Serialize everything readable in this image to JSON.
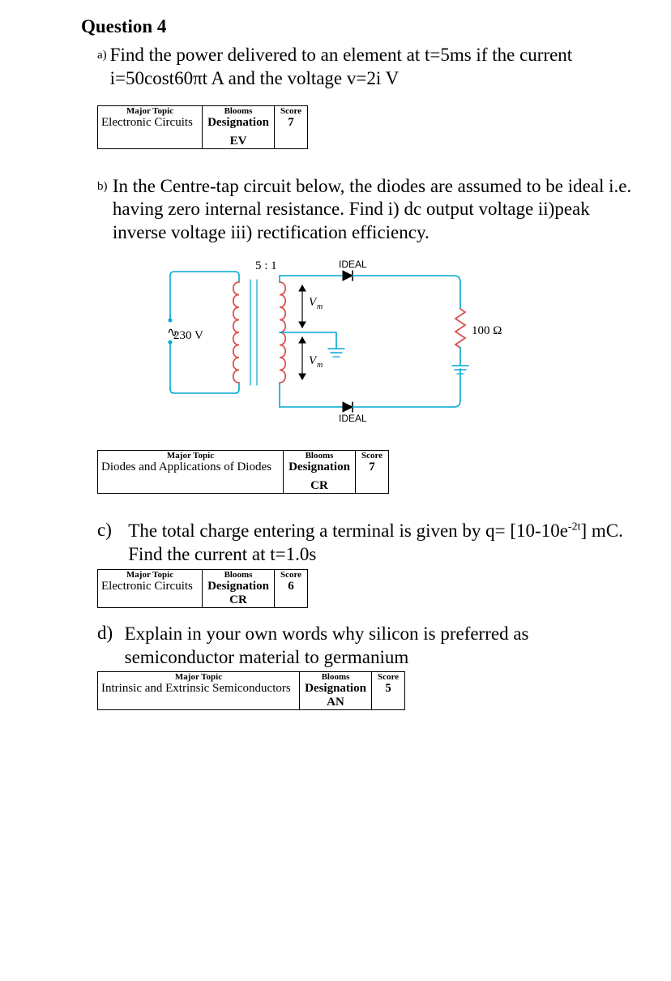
{
  "question_title": "Question 4",
  "part_a": {
    "label": "a)",
    "text": "Find the power delivered to an element at t=5ms if the current i=50cost60πt A and the voltage v=2i V"
  },
  "rubric_a": {
    "h1": "Major Topic",
    "h2": "Blooms",
    "h3": "Score",
    "topic": "Electronic Circuits",
    "desig_label": "Designation",
    "desig_value": "EV",
    "score": "7"
  },
  "part_b": {
    "label": "b)",
    "text": "In the Centre-tap circuit below, the diodes are assumed to be ideal i.e. having zero internal resistance. Find i) dc output voltage ii)peak inverse voltage iii) rectification efficiency."
  },
  "circuit": {
    "ratio": "5 : 1",
    "ideal_top": "IDEAL",
    "ideal_bot": "IDEAL",
    "vin": "230 V",
    "vm1": "V",
    "vm1_sub": "m",
    "vm2": "V",
    "vm2_sub": "m",
    "rload": "100 Ω",
    "wire_color": "#00a9d4",
    "coil_color": "#d9534f",
    "res_color": "#d9534f",
    "text_color": "#000000",
    "ideal_font": 12,
    "label_font": 15
  },
  "rubric_b": {
    "h1": "Major Topic",
    "h2": "Blooms",
    "h3": "Score",
    "topic": "Diodes and Applications of Diodes",
    "desig_label": "Designation",
    "desig_value": "CR",
    "score": "7"
  },
  "part_c": {
    "label": "c)",
    "text1": "The total charge entering a terminal is given by q= [10-10e",
    "sup": "-2t",
    "text2": "]  mC.  Find the current at t=1.0s"
  },
  "rubric_c": {
    "h1": "Major Topic",
    "h2": "Blooms",
    "h3": "Score",
    "topic": "Electronic Circuits",
    "desig_label": "Designation",
    "desig_value": "CR",
    "score": "6"
  },
  "part_d": {
    "label": "d)",
    "text": "Explain in your own words why silicon is preferred as semiconductor material  to germanium"
  },
  "rubric_d": {
    "h1": "Major Topic",
    "h2": "Blooms",
    "h3": "Score",
    "topic": "Intrinsic and Extrinsic Semiconductors",
    "desig_label": "Designation",
    "desig_value": "AN",
    "score": "5"
  }
}
